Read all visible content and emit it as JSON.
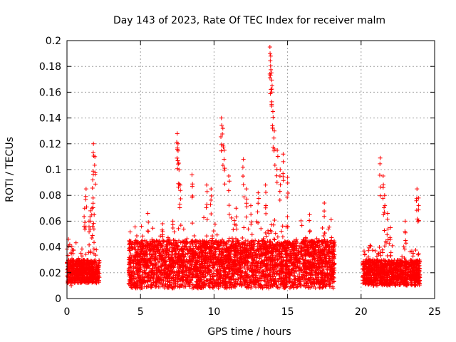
{
  "chart_data": {
    "type": "scatter",
    "title": "Day 143 of 2023, Rate Of TEC Index for receiver malm",
    "xlabel": "GPS time / hours",
    "ylabel": "ROTI / TECUs",
    "xlim": [
      0,
      25
    ],
    "ylim": [
      0,
      0.2
    ],
    "x_ticks": [
      0,
      5,
      10,
      15,
      20,
      25
    ],
    "y_ticks": [
      0,
      0.02,
      0.04,
      0.06,
      0.08,
      0.1,
      0.12,
      0.14,
      0.16,
      0.18,
      0.2
    ],
    "x_tick_labels": [
      "0",
      "5",
      "10",
      "15",
      "20",
      "25"
    ],
    "y_tick_labels": [
      "0",
      "0.02",
      "0.04",
      "0.06",
      "0.08",
      "0.1",
      "0.12",
      "0.14",
      "0.16",
      "0.18",
      "0.2"
    ],
    "grid": true,
    "marker": "+",
    "marker_color": "#ff0000",
    "series": [
      {
        "segments": [
          {
            "x_range": [
              0.0,
              2.2
            ],
            "base": [
              0.012,
              0.03
            ]
          },
          {
            "x_range": [
              4.2,
              18.2
            ],
            "base": [
              0.008,
              0.045
            ]
          },
          {
            "x_range": [
              20.1,
              24.0
            ],
            "base": [
              0.01,
              0.03
            ]
          }
        ],
        "x": [
          0.1,
          0.3,
          1.2,
          1.3,
          1.5,
          1.6,
          1.7,
          1.8,
          1.9,
          1.75,
          1.85,
          5.5,
          6.5,
          7.2,
          7.5,
          7.55,
          7.6,
          7.7,
          8.5,
          9.5,
          9.8,
          10.5,
          10.6,
          10.7,
          11.0,
          11.5,
          12.0,
          12.2,
          12.5,
          13.0,
          13.5,
          13.8,
          13.85,
          13.9,
          13.95,
          14.0,
          14.1,
          14.3,
          14.5,
          14.7,
          15.0,
          16.5,
          17.5,
          21.3,
          21.5,
          21.6,
          21.8,
          22.0,
          23.0,
          23.8,
          23.9
        ],
        "y": [
          0.046,
          0.035,
          0.07,
          0.085,
          0.06,
          0.068,
          0.07,
          0.12,
          0.11,
          0.092,
          0.065,
          0.066,
          0.058,
          0.06,
          0.128,
          0.12,
          0.105,
          0.088,
          0.096,
          0.088,
          0.085,
          0.14,
          0.132,
          0.115,
          0.095,
          0.07,
          0.108,
          0.085,
          0.072,
          0.082,
          0.088,
          0.195,
          0.188,
          0.175,
          0.165,
          0.145,
          0.13,
          0.115,
          0.1,
          0.112,
          0.094,
          0.065,
          0.074,
          0.109,
          0.095,
          0.08,
          0.066,
          0.055,
          0.06,
          0.085,
          0.078
        ]
      }
    ]
  }
}
